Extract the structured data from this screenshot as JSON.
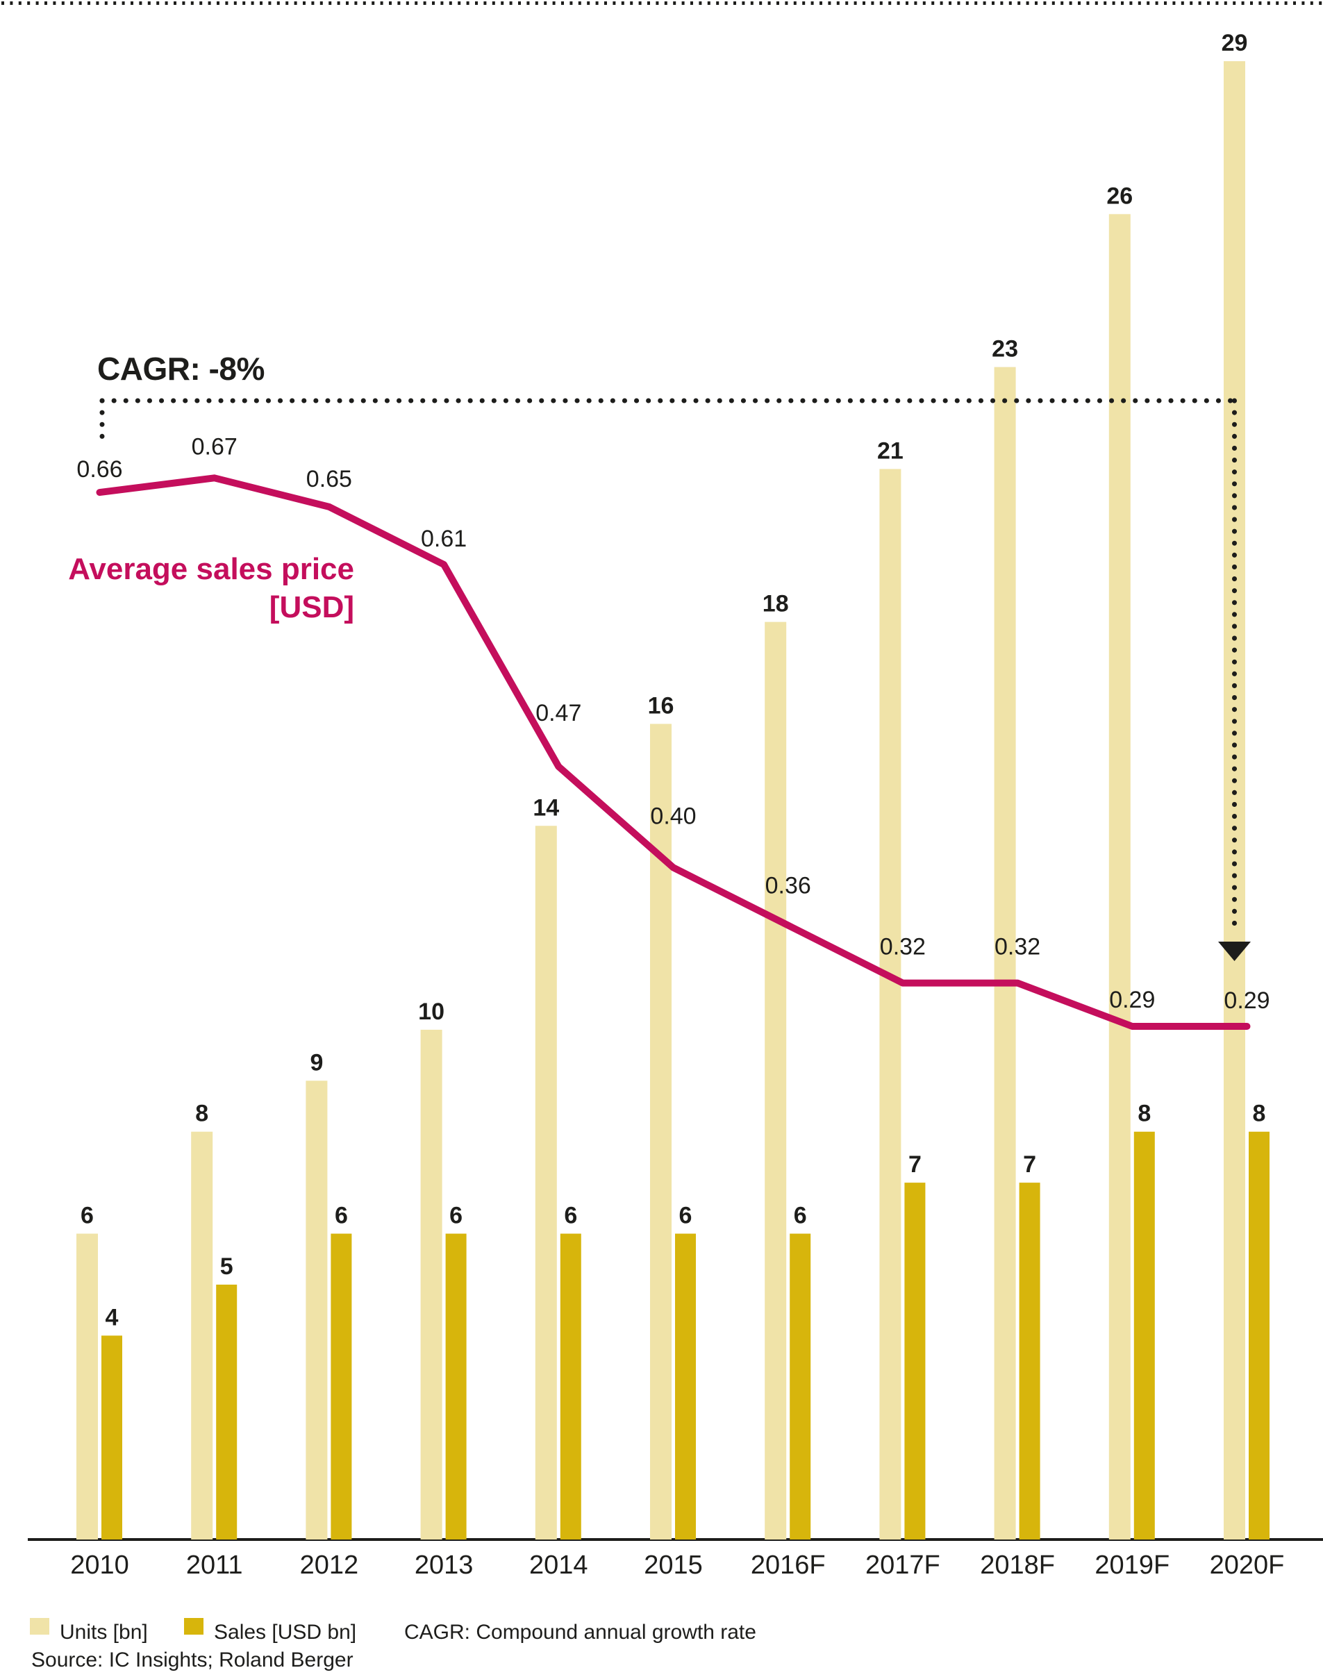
{
  "annotations": {
    "cagr_heading": "CAGR: -8%",
    "asp_label_line1": "Average sales price",
    "asp_label_line2": "[USD]"
  },
  "legend": {
    "units_label": "Units [bn]",
    "sales_label": "Sales [USD bn]",
    "cagr_note": "CAGR: Compound annual growth rate"
  },
  "source_text": "Source: IC Insights; Roland Berger",
  "colors": {
    "units_bar": "#F0E3A8",
    "sales_bar": "#D7B50C",
    "asp_line": "#C40E5C",
    "ink": "#1D1D1B"
  },
  "chart_data": {
    "type": "bar",
    "subtype": "grouped-bars-with-overlaid-line",
    "title": "",
    "xlabel": "",
    "ylabel": "",
    "grid": false,
    "legend_position": "bottom",
    "categories": [
      "2010",
      "2011",
      "2012",
      "2013",
      "2014",
      "2015",
      "2016F",
      "2017F",
      "2018F",
      "2019F",
      "2020F"
    ],
    "series": [
      {
        "name": "Units [bn]",
        "type": "bar",
        "color": "#F0E3A8",
        "values": [
          6,
          8,
          9,
          10,
          14,
          16,
          18,
          21,
          23,
          26,
          29
        ]
      },
      {
        "name": "Sales [USD bn]",
        "type": "bar",
        "color": "#D7B50C",
        "values": [
          4,
          5,
          6,
          6,
          6,
          6,
          6,
          7,
          7,
          8,
          8
        ]
      },
      {
        "name": "Average sales price [USD]",
        "type": "line",
        "color": "#C40E5C",
        "values": [
          0.66,
          0.67,
          0.65,
          0.61,
          0.47,
          0.4,
          0.36,
          0.32,
          0.32,
          0.29,
          0.29
        ],
        "labels": [
          "0.66",
          "0.67",
          "0.65",
          "0.61",
          "0.47",
          "0.40",
          "0.36",
          "0.32",
          "0.32",
          "0.29",
          "0.29"
        ]
      }
    ],
    "annotation": {
      "cagr_text": "CAGR: -8%",
      "cagr_applies_to": "Average sales price [USD]",
      "cagr_span": [
        "2010",
        "2020F"
      ]
    },
    "ylim_bars": [
      0,
      29.5
    ],
    "ylim_line": [
      0,
      0.8
    ]
  }
}
